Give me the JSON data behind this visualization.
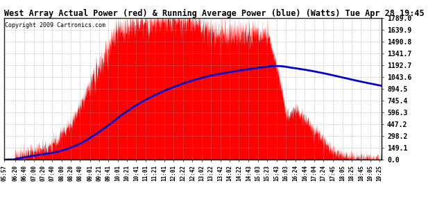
{
  "title": "West Array Actual Power (red) & Running Average Power (blue) (Watts) Tue Apr 28 19:45",
  "copyright": "Copyright 2009 Cartronics.com",
  "background_color": "#ffffff",
  "plot_bg_color": "#ffffff",
  "grid_color": "#999999",
  "red_color": "#ff0000",
  "blue_color": "#0000cc",
  "ymax": 1789.0,
  "ymin": 0.0,
  "yticks": [
    0.0,
    149.1,
    298.2,
    447.2,
    596.3,
    745.4,
    894.5,
    1043.6,
    1192.7,
    1341.7,
    1490.8,
    1639.9,
    1789.0
  ],
  "ytick_labels": [
    "0.0",
    "149.1",
    "298.2",
    "447.2",
    "596.3",
    "745.4",
    "894.5",
    "1043.6",
    "1192.7",
    "1341.7",
    "1490.8",
    "1639.9",
    "1789.0"
  ],
  "xtick_labels": [
    "05:57",
    "06:20",
    "06:40",
    "07:00",
    "07:20",
    "07:40",
    "08:00",
    "08:20",
    "08:40",
    "09:01",
    "09:21",
    "09:41",
    "10:01",
    "10:21",
    "10:41",
    "11:01",
    "11:21",
    "11:41",
    "12:01",
    "12:22",
    "12:42",
    "13:02",
    "13:22",
    "13:42",
    "14:02",
    "14:22",
    "14:43",
    "15:03",
    "15:23",
    "15:43",
    "16:03",
    "16:24",
    "16:44",
    "17:04",
    "17:24",
    "17:45",
    "18:05",
    "18:25",
    "18:45",
    "19:05",
    "19:25"
  ]
}
